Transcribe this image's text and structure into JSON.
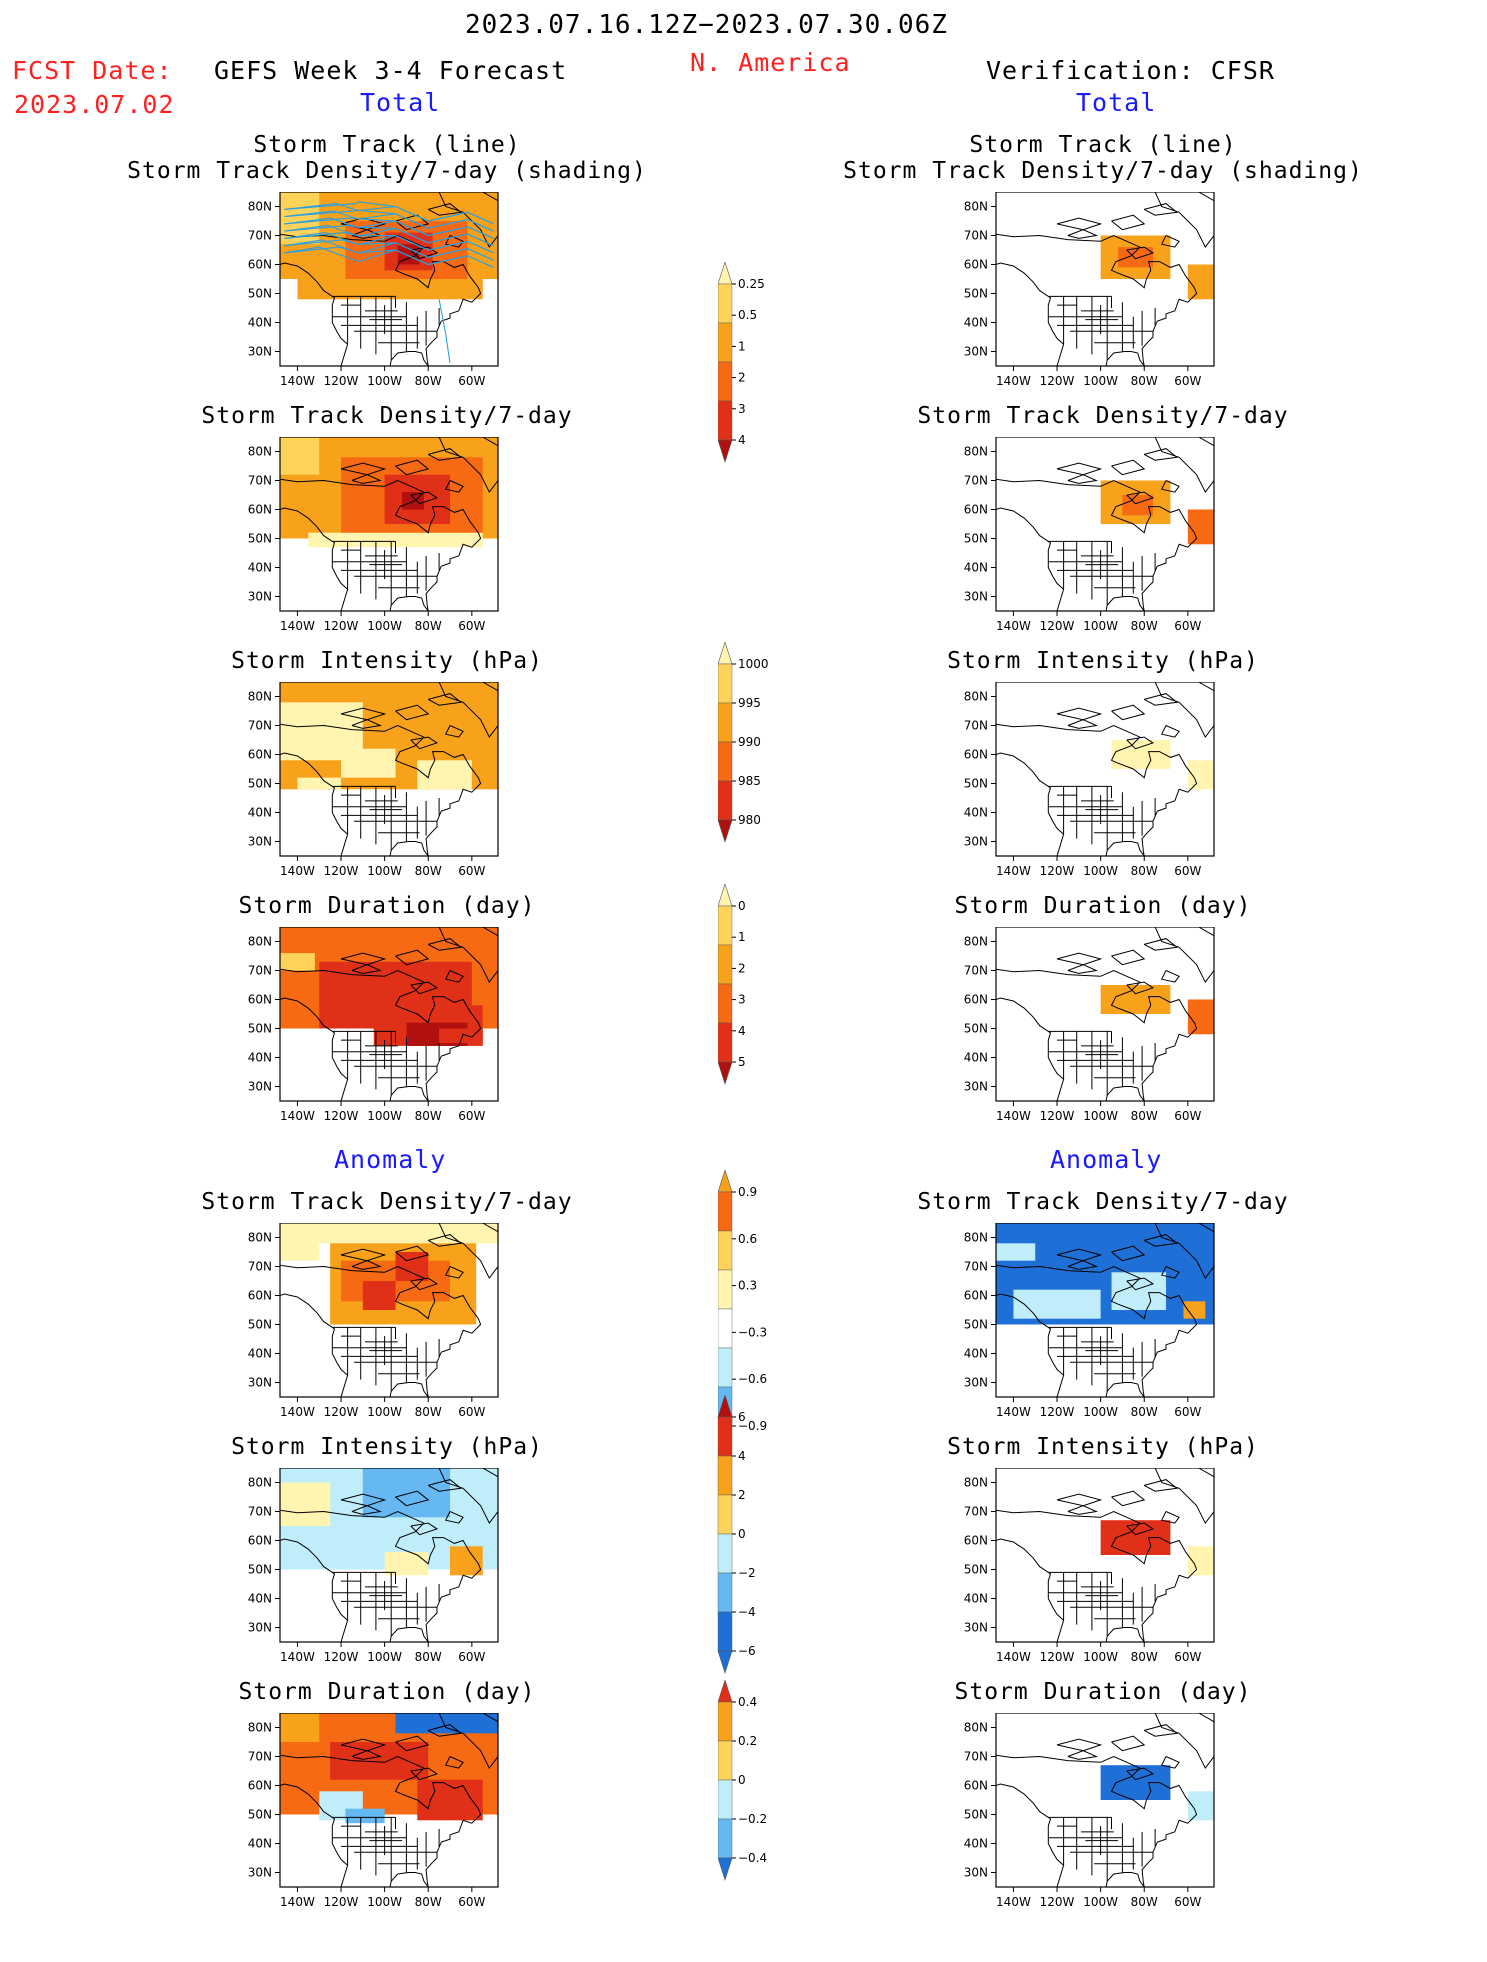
{
  "header": {
    "date_range": "2023.07.16.12Z−2023.07.30.06Z",
    "fcst_label": "FCST Date:",
    "fcst_date": "2023.07.02",
    "forecast_title": "GEFS Week 3-4 Forecast",
    "region": "N. America",
    "verification_title": "Verification: CFSR",
    "total_left": "Total",
    "total_right": "Total",
    "anomaly_left": "Anomaly",
    "anomaly_right": "Anomaly"
  },
  "panel_titles": {
    "track_line": "Storm Track (line)",
    "track_shading": "Storm Track Density/7-day (shading)",
    "density": "Storm Track Density/7-day",
    "intensity": "Storm Intensity (hPa)",
    "duration": "Storm Duration (day)"
  },
  "axes": {
    "lat_labels": [
      "80N",
      "70N",
      "60N",
      "50N",
      "40N",
      "30N"
    ],
    "lon_labels": [
      "140W",
      "120W",
      "100W",
      "80W",
      "60W"
    ]
  },
  "colorbars": {
    "density_total": [
      "0.25",
      "0.5",
      "1",
      "2",
      "3",
      "4"
    ],
    "intensity_total": [
      "1000",
      "995",
      "990",
      "985",
      "980"
    ],
    "duration_total": [
      "0",
      "1",
      "2",
      "3",
      "4",
      "5"
    ],
    "density_anomaly": [
      "0.9",
      "0.6",
      "0.3",
      "−0.3",
      "−0.6",
      "−0.9"
    ],
    "intensity_anomaly": [
      "6",
      "4",
      "2",
      "0",
      "−2",
      "−4",
      "−6"
    ],
    "duration_anomaly": [
      "0.4",
      "0.2",
      "0",
      "−0.2",
      "−0.4"
    ]
  },
  "colors": {
    "light_yellow": "#fff5b0",
    "yellow": "#ffd35a",
    "orange": "#f7a21a",
    "dark_orange": "#f56a12",
    "red": "#e03018",
    "dark_red": "#b01010",
    "light_blue": "#bfeefa",
    "mid_blue": "#66b8f2",
    "blue": "#1e6fd6",
    "track_line": "#2aa0e0"
  }
}
